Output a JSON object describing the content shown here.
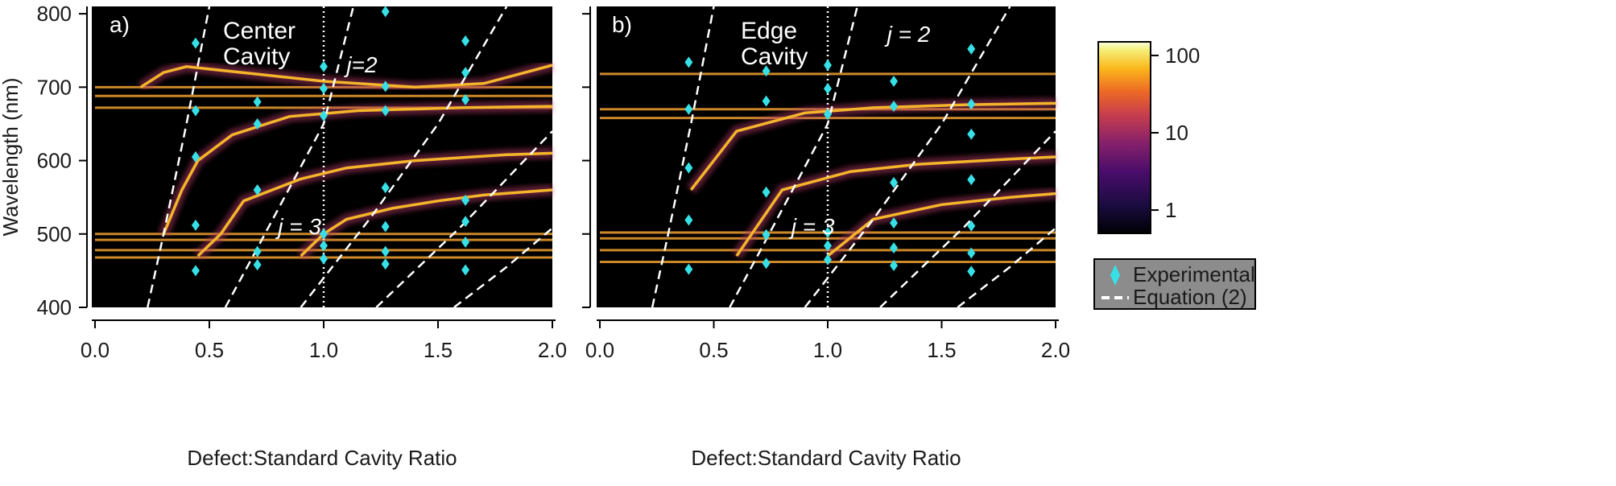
{
  "chart_data": [
    {
      "type": "heatmap",
      "panel": "a)",
      "title": "Center Cavity",
      "xlabel": "Defect:Standard Cavity Ratio",
      "ylabel": "Wavelength (nm)",
      "xlim": [
        0,
        2
      ],
      "ylim": [
        400,
        810
      ],
      "xticks": [
        0.0,
        0.5,
        1.0,
        1.5,
        2.0
      ],
      "xtick_labels": [
        "0.0",
        "0.5",
        "1.0",
        "1.5",
        "2.0"
      ],
      "yticks": [
        400,
        500,
        600,
        700,
        800
      ],
      "ytick_labels": [
        "400",
        "500",
        "600",
        "700",
        "800"
      ],
      "reference_line_x": 1.0,
      "horizontal_bands_nm": [
        468,
        478,
        492,
        500,
        672,
        688,
        700
      ],
      "mode_curves": [
        {
          "name": "mode 1",
          "x": [
            0.3,
            0.38,
            0.45,
            0.6,
            0.85,
            1.15,
            1.6,
            2.0
          ],
          "y": [
            500,
            560,
            600,
            635,
            660,
            668,
            672,
            674
          ]
        },
        {
          "name": "mode 2",
          "x": [
            0.45,
            0.55,
            0.65,
            0.9,
            1.1,
            1.4,
            1.8,
            2.0
          ],
          "y": [
            470,
            500,
            545,
            575,
            590,
            600,
            608,
            610
          ]
        },
        {
          "name": "mode 3",
          "x": [
            0.9,
            1.0,
            1.1,
            1.3,
            1.5,
            1.7,
            2.0
          ],
          "y": [
            470,
            500,
            520,
            535,
            545,
            553,
            560
          ]
        },
        {
          "name": "upper mode",
          "x": [
            0.2,
            0.3,
            0.4,
            0.7,
            1.0,
            1.4,
            1.7,
            2.0
          ],
          "y": [
            700,
            720,
            728,
            718,
            708,
            700,
            705,
            730
          ]
        }
      ],
      "series": [
        {
          "name": "Experimental",
          "marker": "diamond",
          "color": "#36e0e6",
          "points": [
            [
              0.44,
              760
            ],
            [
              0.44,
              668
            ],
            [
              0.44,
              605
            ],
            [
              0.44,
              512
            ],
            [
              0.44,
              450
            ],
            [
              0.71,
              680
            ],
            [
              0.71,
              650
            ],
            [
              0.71,
              560
            ],
            [
              0.71,
              476
            ],
            [
              0.71,
              458
            ],
            [
              1.0,
              728
            ],
            [
              1.0,
              698
            ],
            [
              1.0,
              661
            ],
            [
              1.0,
              500
            ],
            [
              1.0,
              484
            ],
            [
              1.0,
              466
            ],
            [
              1.27,
              803
            ],
            [
              1.27,
              701
            ],
            [
              1.27,
              668
            ],
            [
              1.27,
              563
            ],
            [
              1.27,
              510
            ],
            [
              1.27,
              476
            ],
            [
              1.27,
              459
            ],
            [
              1.62,
              763
            ],
            [
              1.62,
              720
            ],
            [
              1.62,
              683
            ],
            [
              1.62,
              546
            ],
            [
              1.62,
              517
            ],
            [
              1.62,
              489
            ],
            [
              1.62,
              451
            ]
          ]
        },
        {
          "name": "Equation (2)",
          "style": "dashed",
          "color": "#ffffff",
          "lines": [
            {
              "x": [
                0.23,
                0.3,
                0.4,
                0.5
              ],
              "y": [
                400,
                500,
                650,
                810
              ]
            },
            {
              "x": [
                0.57,
                0.7,
                1.0,
                1.13
              ],
              "y": [
                400,
                475,
                650,
                810
              ]
            },
            {
              "x": [
                0.9,
                1.2,
                1.5,
                1.8
              ],
              "y": [
                400,
                520,
                650,
                810
              ]
            },
            {
              "x": [
                1.23,
                1.6,
                2.0
              ],
              "y": [
                400,
                510,
                640
              ]
            },
            {
              "x": [
                1.57,
                1.8,
                2.0
              ],
              "y": [
                400,
                455,
                508
              ]
            }
          ]
        }
      ],
      "annotations": [
        {
          "text": "j=2",
          "x": 1.1,
          "y": 720
        },
        {
          "text": "j = 3",
          "x": 0.8,
          "y": 500
        }
      ]
    },
    {
      "type": "heatmap",
      "panel": "b)",
      "title": "Edge Cavity",
      "xlabel": "Defect:Standard Cavity Ratio",
      "ylabel": "",
      "xlim": [
        0,
        2
      ],
      "ylim": [
        400,
        810
      ],
      "xticks": [
        0.0,
        0.5,
        1.0,
        1.5,
        2.0
      ],
      "xtick_labels": [
        "0.0",
        "0.5",
        "1.0",
        "1.5",
        "2.0"
      ],
      "yticks": [
        400,
        500,
        600,
        700,
        800
      ],
      "reference_line_x": 1.0,
      "horizontal_bands_nm": [
        462,
        478,
        494,
        502,
        658,
        670,
        718
      ],
      "mode_curves": [
        {
          "name": "mode 1",
          "x": [
            0.4,
            0.6,
            0.9,
            1.2,
            1.6,
            2.0
          ],
          "y": [
            560,
            640,
            665,
            672,
            676,
            678
          ]
        },
        {
          "name": "mode 2",
          "x": [
            0.6,
            0.8,
            1.1,
            1.4,
            1.8,
            2.0
          ],
          "y": [
            470,
            560,
            585,
            595,
            602,
            605
          ]
        },
        {
          "name": "mode 3",
          "x": [
            1.0,
            1.2,
            1.5,
            1.8,
            2.0
          ],
          "y": [
            470,
            520,
            540,
            550,
            555
          ]
        }
      ],
      "series": [
        {
          "name": "Experimental",
          "marker": "diamond",
          "color": "#36e0e6",
          "points": [
            [
              0.39,
              734
            ],
            [
              0.39,
              670
            ],
            [
              0.39,
              590
            ],
            [
              0.39,
              519
            ],
            [
              0.39,
              452
            ],
            [
              0.73,
              722
            ],
            [
              0.73,
              681
            ],
            [
              0.73,
              557
            ],
            [
              0.73,
              499
            ],
            [
              0.73,
              460
            ],
            [
              1.0,
              730
            ],
            [
              1.0,
              698
            ],
            [
              1.0,
              663
            ],
            [
              1.0,
              502
            ],
            [
              1.0,
              484
            ],
            [
              1.0,
              465
            ],
            [
              1.29,
              708
            ],
            [
              1.29,
              674
            ],
            [
              1.29,
              570
            ],
            [
              1.29,
              515
            ],
            [
              1.29,
              481
            ],
            [
              1.29,
              457
            ],
            [
              1.63,
              752
            ],
            [
              1.63,
              677
            ],
            [
              1.63,
              636
            ],
            [
              1.63,
              574
            ],
            [
              1.63,
              511
            ],
            [
              1.63,
              474
            ],
            [
              1.63,
              449
            ]
          ]
        },
        {
          "name": "Equation (2)",
          "style": "dashed",
          "color": "#ffffff",
          "lines": [
            {
              "x": [
                0.23,
                0.3,
                0.4,
                0.5
              ],
              "y": [
                400,
                500,
                650,
                810
              ]
            },
            {
              "x": [
                0.57,
                0.7,
                1.0,
                1.13
              ],
              "y": [
                400,
                475,
                650,
                810
              ]
            },
            {
              "x": [
                0.9,
                1.2,
                1.5,
                1.8
              ],
              "y": [
                400,
                520,
                650,
                810
              ]
            },
            {
              "x": [
                1.23,
                1.6,
                2.0
              ],
              "y": [
                400,
                510,
                640
              ]
            },
            {
              "x": [
                1.57,
                1.8,
                2.0
              ],
              "y": [
                400,
                455,
                508
              ]
            }
          ]
        }
      ],
      "annotations": [
        {
          "text": "j = 2",
          "x": 1.26,
          "y": 762
        },
        {
          "text": "j = 3",
          "x": 0.84,
          "y": 500
        }
      ]
    }
  ],
  "colorbar": {
    "scale": "log",
    "tick_labels": [
      "100",
      "10",
      "1"
    ],
    "tick_values": [
      100,
      10,
      1
    ],
    "range": [
      0.5,
      150
    ]
  },
  "legend": {
    "items": [
      {
        "label": "Experimental",
        "marker": "diamond",
        "color": "#36e0e6"
      },
      {
        "label": "Equation (2)",
        "marker": "dashed-line",
        "color": "#ffffff"
      }
    ]
  }
}
